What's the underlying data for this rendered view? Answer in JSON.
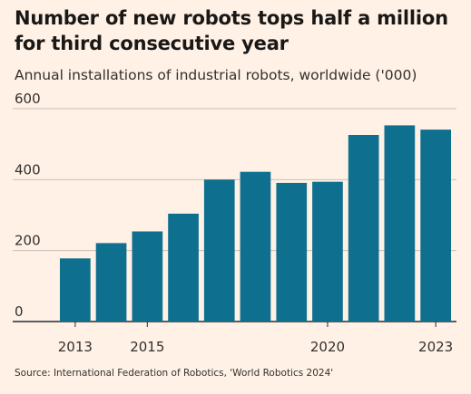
{
  "title": "Number of new robots tops half a million for third consecutive year",
  "subtitle": "Annual installations of industrial robots, worldwide ('000)",
  "source": "Source: International Federation of Robotics, 'World Robotics 2024'",
  "colors": {
    "background": "#fff1e5",
    "bar": "#0f6f8f",
    "grid": "#c9bfb5",
    "baseline": "#262a33"
  },
  "chart_data": {
    "type": "bar",
    "categories": [
      "2013",
      "2014",
      "2015",
      "2016",
      "2017",
      "2018",
      "2019",
      "2020",
      "2021",
      "2022",
      "2023"
    ],
    "x_tick_labels": [
      "2013",
      "",
      "2015",
      "",
      "",
      "",
      "",
      "2020",
      "",
      "",
      "2023"
    ],
    "values": [
      178,
      221,
      254,
      304,
      400,
      422,
      391,
      394,
      526,
      553,
      541
    ],
    "ylim": [
      0,
      600
    ],
    "yticks": [
      0,
      200,
      400,
      600
    ],
    "ytick_labels": [
      "0",
      "200",
      "400",
      "600"
    ],
    "grid": true,
    "unit": "'000"
  }
}
